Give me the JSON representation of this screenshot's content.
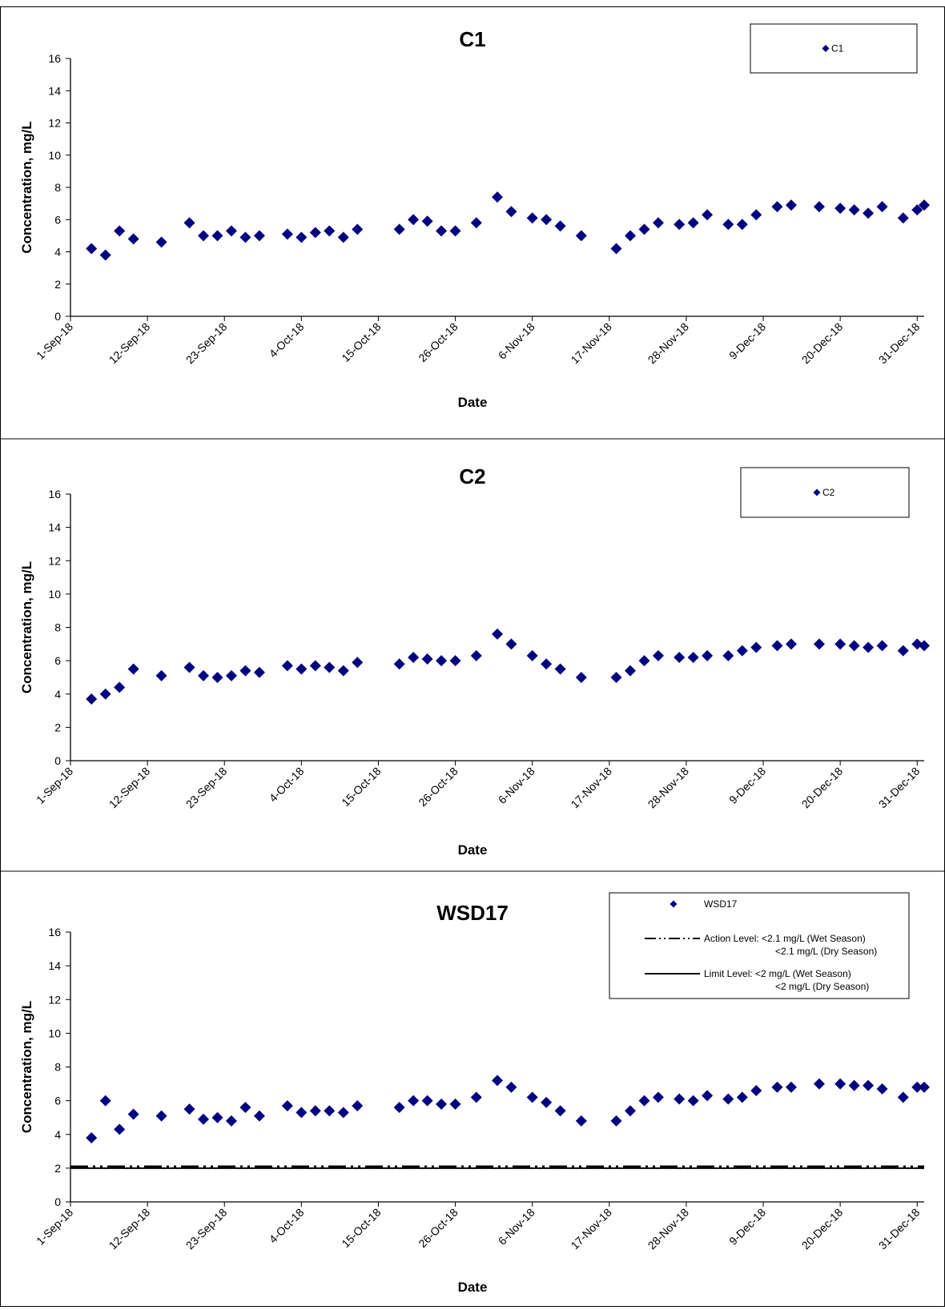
{
  "chart_data": [
    {
      "type": "scatter",
      "title": "C1",
      "xlabel": "Date",
      "ylabel": "Concentration, mg/L",
      "ylim": [
        0,
        16
      ],
      "yticks": [
        "0",
        "2",
        "4",
        "6",
        "8",
        "10",
        "12",
        "14",
        "16"
      ],
      "xlim": [
        "2018-09-01",
        "2018-12-31"
      ],
      "xticks": [
        "1-Sep-18",
        "12-Sep-18",
        "23-Sep-18",
        "4-Oct-18",
        "15-Oct-18",
        "26-Oct-18",
        "6-Nov-18",
        "17-Nov-18",
        "28-Nov-18",
        "9-Dec-18",
        "20-Dec-18",
        "31-Dec-18"
      ],
      "legend": "top-right",
      "grid": false,
      "marker_color": "#000080",
      "series": [
        {
          "name": "C1",
          "marker": "diamond",
          "points": [
            [
              "2018-09-04",
              4.2
            ],
            [
              "2018-09-06",
              3.8
            ],
            [
              "2018-09-08",
              5.3
            ],
            [
              "2018-09-10",
              4.8
            ],
            [
              "2018-09-14",
              4.6
            ],
            [
              "2018-09-18",
              5.8
            ],
            [
              "2018-09-20",
              5.0
            ],
            [
              "2018-09-22",
              5.0
            ],
            [
              "2018-09-24",
              5.3
            ],
            [
              "2018-09-26",
              4.9
            ],
            [
              "2018-09-28",
              5.0
            ],
            [
              "2018-10-02",
              5.1
            ],
            [
              "2018-10-04",
              4.9
            ],
            [
              "2018-10-06",
              5.2
            ],
            [
              "2018-10-08",
              5.3
            ],
            [
              "2018-10-10",
              4.9
            ],
            [
              "2018-10-12",
              5.4
            ],
            [
              "2018-10-18",
              5.4
            ],
            [
              "2018-10-20",
              6.0
            ],
            [
              "2018-10-22",
              5.9
            ],
            [
              "2018-10-24",
              5.3
            ],
            [
              "2018-10-26",
              5.3
            ],
            [
              "2018-10-29",
              5.8
            ],
            [
              "2018-11-01",
              7.4
            ],
            [
              "2018-11-03",
              6.5
            ],
            [
              "2018-11-06",
              6.1
            ],
            [
              "2018-11-08",
              6.0
            ],
            [
              "2018-11-10",
              5.6
            ],
            [
              "2018-11-13",
              5.0
            ],
            [
              "2018-11-18",
              4.2
            ],
            [
              "2018-11-20",
              5.0
            ],
            [
              "2018-11-22",
              5.4
            ],
            [
              "2018-11-24",
              5.8
            ],
            [
              "2018-11-27",
              5.7
            ],
            [
              "2018-11-29",
              5.8
            ],
            [
              "2018-12-01",
              6.3
            ],
            [
              "2018-12-04",
              5.7
            ],
            [
              "2018-12-06",
              5.7
            ],
            [
              "2018-12-08",
              6.3
            ],
            [
              "2018-12-11",
              6.8
            ],
            [
              "2018-12-13",
              6.9
            ],
            [
              "2018-12-17",
              6.8
            ],
            [
              "2018-12-20",
              6.7
            ],
            [
              "2018-12-22",
              6.6
            ],
            [
              "2018-12-24",
              6.4
            ],
            [
              "2018-12-26",
              6.8
            ],
            [
              "2018-12-29",
              6.1
            ],
            [
              "2018-12-31",
              6.6
            ],
            [
              "2019-01-01",
              6.9
            ]
          ]
        }
      ],
      "reference_lines": []
    },
    {
      "type": "scatter",
      "title": "C2",
      "xlabel": "Date",
      "ylabel": "Concentration, mg/L",
      "ylim": [
        0,
        16
      ],
      "yticks": [
        "0",
        "2",
        "4",
        "6",
        "8",
        "10",
        "12",
        "14",
        "16"
      ],
      "xlim": [
        "2018-09-01",
        "2018-12-31"
      ],
      "xticks": [
        "1-Sep-18",
        "12-Sep-18",
        "23-Sep-18",
        "4-Oct-18",
        "15-Oct-18",
        "26-Oct-18",
        "6-Nov-18",
        "17-Nov-18",
        "28-Nov-18",
        "9-Dec-18",
        "20-Dec-18",
        "31-Dec-18"
      ],
      "legend": "top-right",
      "grid": false,
      "marker_color": "#000080",
      "series": [
        {
          "name": "C2",
          "marker": "diamond",
          "points": [
            [
              "2018-09-04",
              3.7
            ],
            [
              "2018-09-06",
              4.0
            ],
            [
              "2018-09-08",
              4.4
            ],
            [
              "2018-09-10",
              5.5
            ],
            [
              "2018-09-14",
              5.1
            ],
            [
              "2018-09-18",
              5.6
            ],
            [
              "2018-09-20",
              5.1
            ],
            [
              "2018-09-22",
              5.0
            ],
            [
              "2018-09-24",
              5.1
            ],
            [
              "2018-09-26",
              5.4
            ],
            [
              "2018-09-28",
              5.3
            ],
            [
              "2018-10-02",
              5.7
            ],
            [
              "2018-10-04",
              5.5
            ],
            [
              "2018-10-06",
              5.7
            ],
            [
              "2018-10-08",
              5.6
            ],
            [
              "2018-10-10",
              5.4
            ],
            [
              "2018-10-12",
              5.9
            ],
            [
              "2018-10-18",
              5.8
            ],
            [
              "2018-10-20",
              6.2
            ],
            [
              "2018-10-22",
              6.1
            ],
            [
              "2018-10-24",
              6.0
            ],
            [
              "2018-10-26",
              6.0
            ],
            [
              "2018-10-29",
              6.3
            ],
            [
              "2018-11-01",
              7.6
            ],
            [
              "2018-11-03",
              7.0
            ],
            [
              "2018-11-06",
              6.3
            ],
            [
              "2018-11-08",
              5.8
            ],
            [
              "2018-11-10",
              5.5
            ],
            [
              "2018-11-13",
              5.0
            ],
            [
              "2018-11-18",
              5.0
            ],
            [
              "2018-11-20",
              5.4
            ],
            [
              "2018-11-22",
              6.0
            ],
            [
              "2018-11-24",
              6.3
            ],
            [
              "2018-11-27",
              6.2
            ],
            [
              "2018-11-29",
              6.2
            ],
            [
              "2018-12-01",
              6.3
            ],
            [
              "2018-12-04",
              6.3
            ],
            [
              "2018-12-06",
              6.6
            ],
            [
              "2018-12-08",
              6.8
            ],
            [
              "2018-12-11",
              6.9
            ],
            [
              "2018-12-13",
              7.0
            ],
            [
              "2018-12-17",
              7.0
            ],
            [
              "2018-12-20",
              7.0
            ],
            [
              "2018-12-22",
              6.9
            ],
            [
              "2018-12-24",
              6.8
            ],
            [
              "2018-12-26",
              6.9
            ],
            [
              "2018-12-29",
              6.6
            ],
            [
              "2018-12-31",
              7.0
            ],
            [
              "2019-01-01",
              6.9
            ]
          ]
        }
      ],
      "reference_lines": []
    },
    {
      "type": "scatter",
      "title": "WSD17",
      "xlabel": "Date",
      "ylabel": "Concentration, mg/L",
      "ylim": [
        0,
        16
      ],
      "yticks": [
        "0",
        "2",
        "4",
        "6",
        "8",
        "10",
        "12",
        "14",
        "16"
      ],
      "xlim": [
        "2018-09-01",
        "2018-12-31"
      ],
      "xticks": [
        "1-Sep-18",
        "12-Sep-18",
        "23-Sep-18",
        "4-Oct-18",
        "15-Oct-18",
        "26-Oct-18",
        "6-Nov-18",
        "17-Nov-18",
        "28-Nov-18",
        "9-Dec-18",
        "20-Dec-18",
        "31-Dec-18"
      ],
      "legend": "top-right",
      "grid": false,
      "marker_color": "#000080",
      "series": [
        {
          "name": "WSD17",
          "marker": "diamond",
          "points": [
            [
              "2018-09-04",
              3.8
            ],
            [
              "2018-09-06",
              6.0
            ],
            [
              "2018-09-08",
              4.3
            ],
            [
              "2018-09-10",
              5.2
            ],
            [
              "2018-09-14",
              5.1
            ],
            [
              "2018-09-18",
              5.5
            ],
            [
              "2018-09-20",
              4.9
            ],
            [
              "2018-09-22",
              5.0
            ],
            [
              "2018-09-24",
              4.8
            ],
            [
              "2018-09-26",
              5.6
            ],
            [
              "2018-09-28",
              5.1
            ],
            [
              "2018-10-02",
              5.7
            ],
            [
              "2018-10-04",
              5.3
            ],
            [
              "2018-10-06",
              5.4
            ],
            [
              "2018-10-08",
              5.4
            ],
            [
              "2018-10-10",
              5.3
            ],
            [
              "2018-10-12",
              5.7
            ],
            [
              "2018-10-18",
              5.6
            ],
            [
              "2018-10-20",
              6.0
            ],
            [
              "2018-10-22",
              6.0
            ],
            [
              "2018-10-24",
              5.8
            ],
            [
              "2018-10-26",
              5.8
            ],
            [
              "2018-10-29",
              6.2
            ],
            [
              "2018-11-01",
              7.2
            ],
            [
              "2018-11-03",
              6.8
            ],
            [
              "2018-11-06",
              6.2
            ],
            [
              "2018-11-08",
              5.9
            ],
            [
              "2018-11-10",
              5.4
            ],
            [
              "2018-11-13",
              4.8
            ],
            [
              "2018-11-18",
              4.8
            ],
            [
              "2018-11-20",
              5.4
            ],
            [
              "2018-11-22",
              6.0
            ],
            [
              "2018-11-24",
              6.2
            ],
            [
              "2018-11-27",
              6.1
            ],
            [
              "2018-11-29",
              6.0
            ],
            [
              "2018-12-01",
              6.3
            ],
            [
              "2018-12-04",
              6.1
            ],
            [
              "2018-12-06",
              6.2
            ],
            [
              "2018-12-08",
              6.6
            ],
            [
              "2018-12-11",
              6.8
            ],
            [
              "2018-12-13",
              6.8
            ],
            [
              "2018-12-17",
              7.0
            ],
            [
              "2018-12-20",
              7.0
            ],
            [
              "2018-12-22",
              6.9
            ],
            [
              "2018-12-24",
              6.9
            ],
            [
              "2018-12-26",
              6.7
            ],
            [
              "2018-12-29",
              6.2
            ],
            [
              "2018-12-31",
              6.8
            ],
            [
              "2019-01-01",
              6.8
            ]
          ]
        }
      ],
      "reference_lines": [
        {
          "name": "Action Level:  <2.1 mg/L (Wet Season)",
          "legend_line2": "<2.1 mg/L (Dry Season)",
          "value": 2.1,
          "style": "dash-dot-dot"
        },
        {
          "name": "Limit Level:  <2 mg/L (Wet Season)",
          "legend_line2": "<2 mg/L (Dry Season)",
          "value": 2.0,
          "style": "solid"
        }
      ]
    }
  ]
}
